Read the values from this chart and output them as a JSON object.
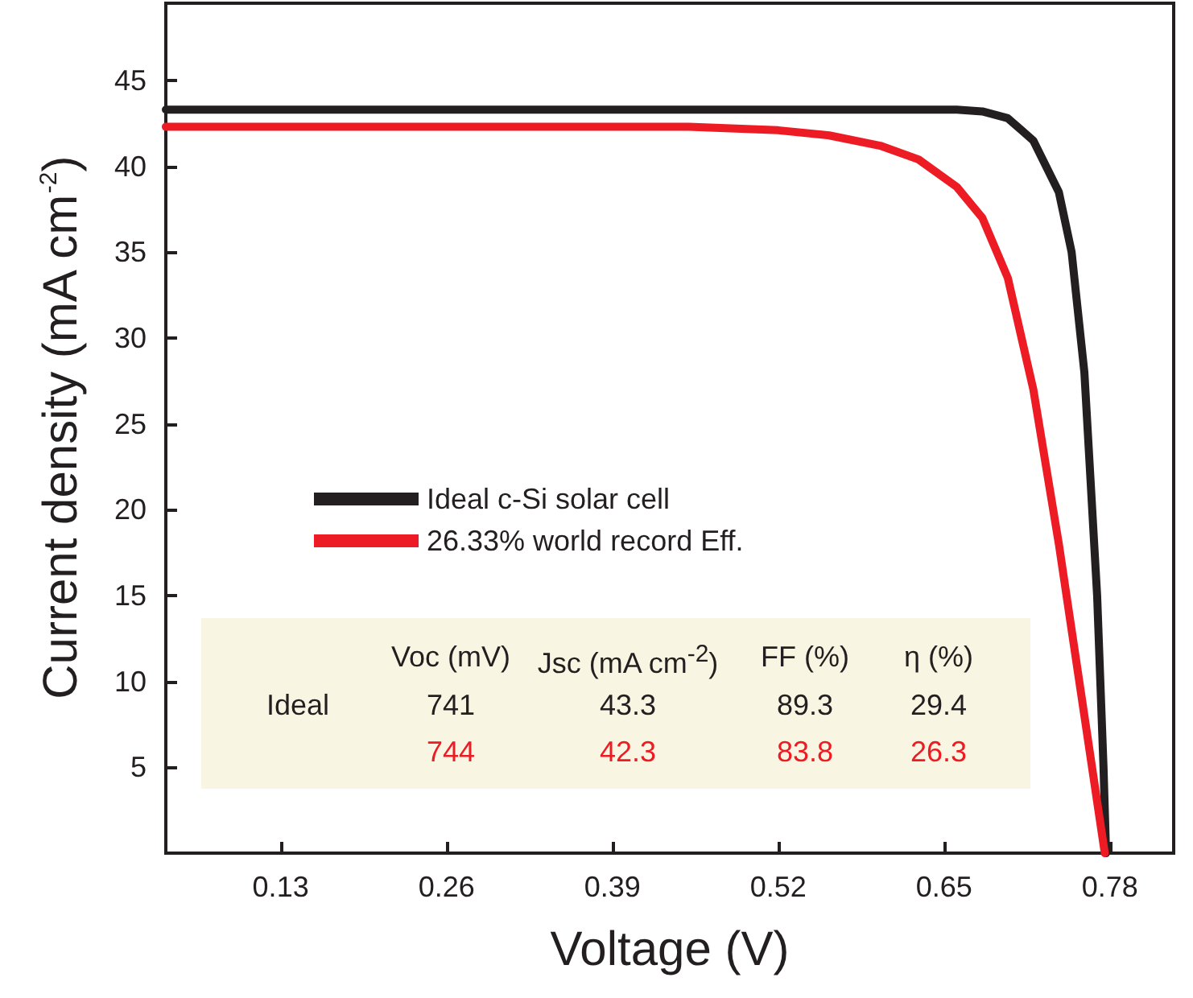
{
  "chart_data": {
    "type": "line",
    "xlabel": "Voltage (V)",
    "ylabel": "Current density (mA cm$^{-2}$)",
    "xlim": [
      0.04,
      0.83
    ],
    "xticks": [
      0.13,
      0.26,
      0.39,
      0.52,
      0.65,
      0.78
    ],
    "ylim": [
      0,
      49.5
    ],
    "yticks": [
      5,
      10,
      15,
      20,
      25,
      30,
      35,
      40,
      45
    ],
    "grid": false,
    "legend": "left",
    "marker": "none",
    "line_style": "solid",
    "series": [
      {
        "name": "Ideal c-Si solar cell",
        "color": "#231f20",
        "x": [
          0.04,
          0.3,
          0.6,
          0.66,
          0.68,
          0.7,
          0.72,
          0.74,
          0.75,
          0.76,
          0.77,
          0.775,
          0.777
        ],
        "values": [
          43.3,
          43.3,
          43.3,
          43.3,
          43.2,
          42.8,
          41.5,
          38.5,
          35,
          28,
          15,
          5,
          0
        ]
      },
      {
        "name": "26.33% world record Eff.",
        "color": "#ed1c24",
        "x": [
          0.04,
          0.3,
          0.45,
          0.52,
          0.56,
          0.6,
          0.63,
          0.66,
          0.68,
          0.7,
          0.72,
          0.74,
          0.76,
          0.776
        ],
        "values": [
          42.3,
          42.3,
          42.3,
          42.1,
          41.8,
          41.2,
          40.4,
          38.8,
          37,
          33.5,
          27,
          18,
          8,
          0
        ]
      }
    ],
    "annotations": [
      "Voc (mV)",
      "Jsc (mA cm$^{-2}$)",
      "FF (%)",
      "η (%)",
      "Ideal",
      "741",
      "43.3",
      "89.3",
      "29.4",
      "744",
      "42.3",
      "83.8",
      "26.3"
    ]
  }
}
